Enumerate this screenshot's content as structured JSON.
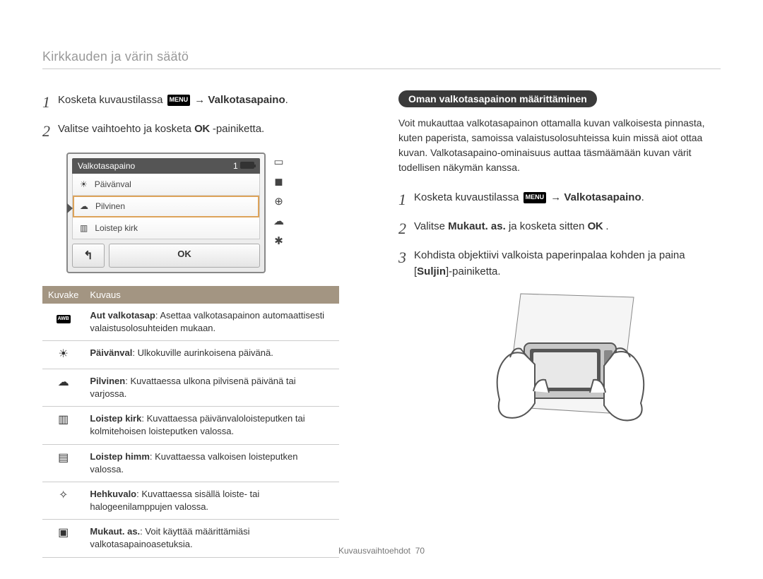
{
  "page_title": "Kirkkauden ja värin säätö",
  "left": {
    "steps": [
      {
        "num": "1",
        "prefix": "Kosketa kuvaustilassa ",
        "chip": "MENU",
        "arrow": " → ",
        "bold": "Valkotasapaino",
        "suffix": "."
      },
      {
        "num": "2",
        "text_before": "Valitse vaihtoehto ja kosketa ",
        "ok": "OK",
        "text_after": " -painiketta."
      }
    ],
    "camera": {
      "title": "Valkotasapaino",
      "counter": "1",
      "rows": [
        {
          "icon": "☀",
          "label": "Päivänval"
        },
        {
          "icon": "☁",
          "label": "Pilvinen"
        },
        {
          "icon": "▥",
          "label": "Loistep kirk"
        }
      ],
      "ok_label": "OK",
      "back_label": "↰",
      "side_icons": [
        "▭",
        "◼",
        "⊕",
        "☁",
        "✱"
      ]
    },
    "table": {
      "headers": [
        "Kuvake",
        "Kuvaus"
      ],
      "rows": [
        {
          "icon_type": "awb",
          "icon": "AWB",
          "bold": "Aut valkotasap",
          "text": ": Asettaa valkotasapainon automaattisesti valaistusolosuhteiden mukaan."
        },
        {
          "icon_type": "glyph",
          "icon": "☀",
          "bold": "Päivänval",
          "text": ": Ulkokuville aurinkoisena päivänä."
        },
        {
          "icon_type": "glyph",
          "icon": "☁",
          "bold": "Pilvinen",
          "text": ": Kuvattaessa ulkona pilvisenä päivänä tai varjossa."
        },
        {
          "icon_type": "glyph",
          "icon": "▥",
          "bold": "Loistep kirk",
          "text": ": Kuvattaessa päivänvaloloisteputken tai kolmitehoisen loisteputken valossa."
        },
        {
          "icon_type": "glyph",
          "icon": "▤",
          "bold": "Loistep himm",
          "text": ": Kuvattaessa valkoisen loisteputken valossa."
        },
        {
          "icon_type": "glyph",
          "icon": "✧",
          "bold": "Hehkuvalo",
          "text": ": Kuvattaessa sisällä loiste- tai halogeenilamppujen valossa."
        },
        {
          "icon_type": "glyph",
          "icon": "▣",
          "bold": "Mukaut. as.",
          "text": ": Voit käyttää määrittämiäsi valkotasapainoasetuksia."
        }
      ]
    }
  },
  "right": {
    "heading": "Oman valkotasapainon määrittäminen",
    "intro": "Voit mukauttaa valkotasapainon ottamalla kuvan valkoisesta pinnasta, kuten paperista, samoissa valaistusolosuhteissa kuin missä aiot ottaa kuvan. Valkotasapaino-ominaisuus auttaa täsmäämään kuvan värit todellisen näkymän kanssa.",
    "steps": [
      {
        "num": "1",
        "prefix": "Kosketa kuvaustilassa ",
        "chip": "MENU",
        "arrow": " → ",
        "bold": "Valkotasapaino",
        "suffix": "."
      },
      {
        "num": "2",
        "text_before": "Valitse ",
        "bold": "Mukaut. as.",
        "mid": " ja kosketa sitten ",
        "ok": "OK",
        "suffix": "."
      },
      {
        "num": "3",
        "text_before": "Kohdista objektiivi valkoista paperinpalaa kohden ja paina [",
        "bold": "Suljin",
        "suffix": "]-painiketta."
      }
    ]
  },
  "footer": {
    "label": "Kuvausvaihtoehdot",
    "page": "70"
  }
}
